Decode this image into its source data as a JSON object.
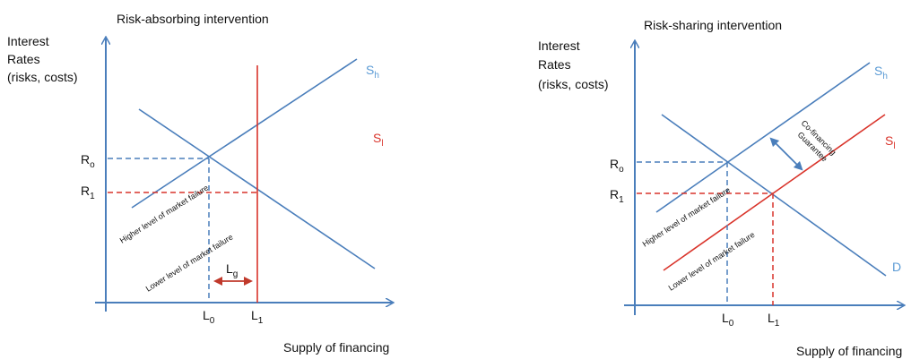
{
  "colors": {
    "blue": "#4a7ebb",
    "red": "#d9342b",
    "curve_label_blue": "#5b9bd5"
  },
  "left": {
    "title": "Risk-absorbing intervention",
    "y_label": [
      "Interest",
      "Rates",
      "(risks, costs)"
    ],
    "x_label": "Supply of financing",
    "curves": {
      "s_h": "S",
      "s_h_sub": "h",
      "s_l": "S",
      "s_l_sub": "l"
    },
    "r0": "R",
    "r0_sub": "o",
    "r1": "R",
    "r1_sub": "1",
    "l0": "L",
    "l0_sub": "0",
    "l1": "L",
    "l1_sub": "1",
    "lg": "L",
    "lg_sub": "g",
    "higher_failure": "Higher level of market failure",
    "lower_failure": "Lower level of market failure"
  },
  "right": {
    "title": "Risk-sharing intervention",
    "y_label": [
      "Interest",
      "Rates",
      "(risks, costs)"
    ],
    "x_label": "Supply of financing",
    "curves": {
      "s_h": "S",
      "s_h_sub": "h",
      "s_l": "S",
      "s_l_sub": "l",
      "d": "D"
    },
    "r0": "R",
    "r0_sub": "o",
    "r1": "R",
    "r1_sub": "1",
    "l0": "L",
    "l0_sub": "0",
    "l1": "L",
    "l1_sub": "1",
    "higher_failure": "Higher level of market failure",
    "lower_failure": "Lower level of market failure",
    "cofinancing": [
      "Co-financing",
      "Guarantee"
    ]
  }
}
